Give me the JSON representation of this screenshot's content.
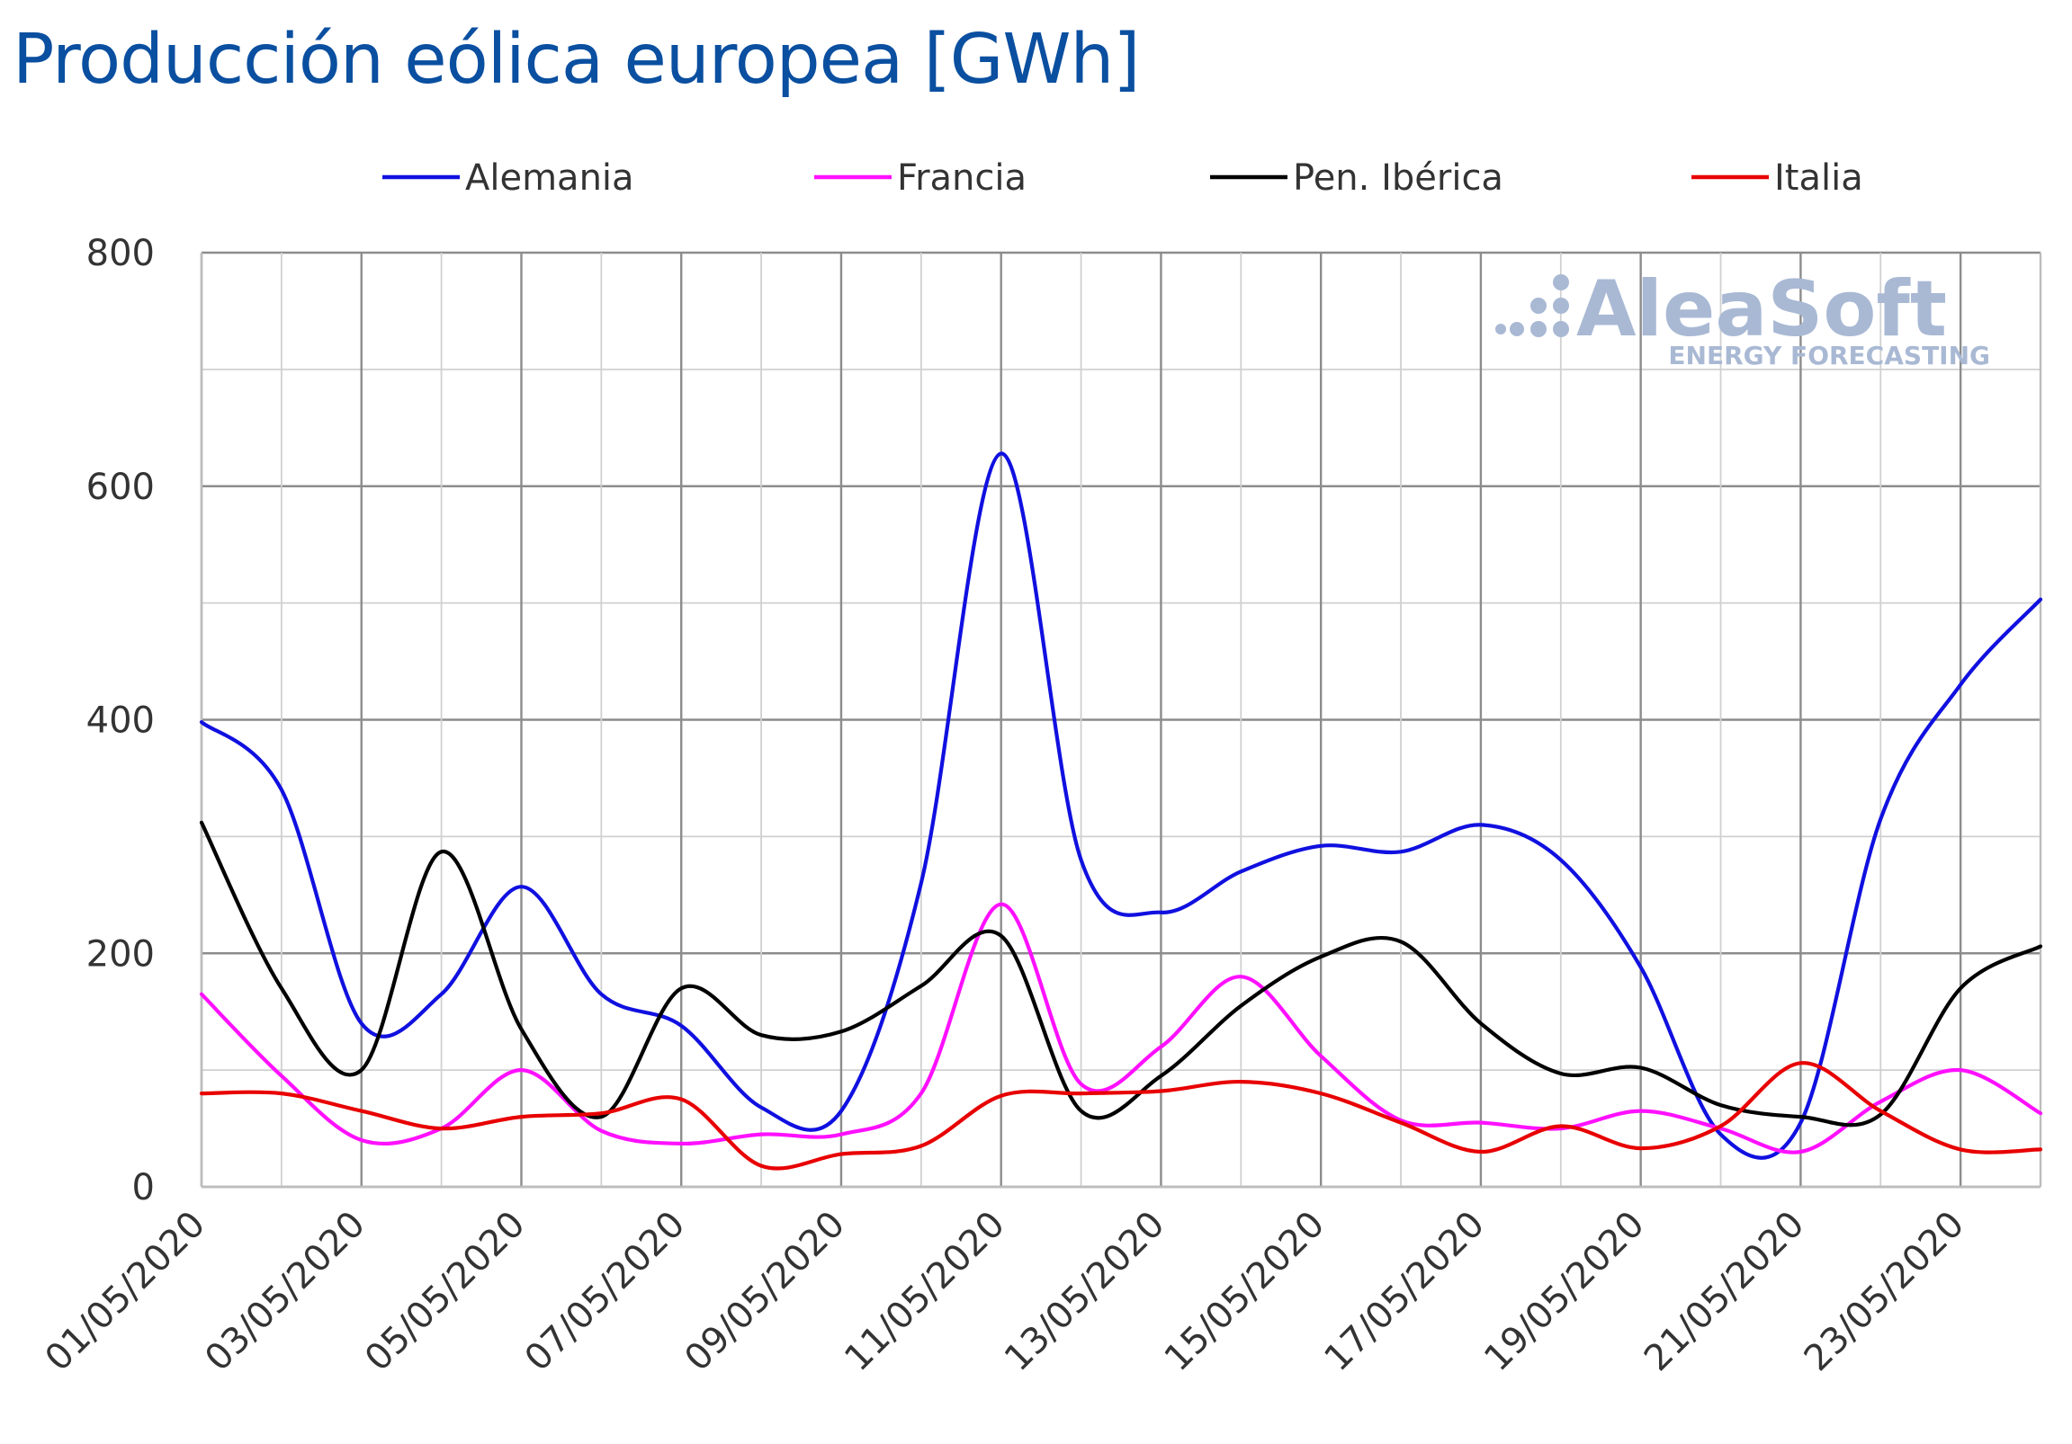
{
  "chart_data": {
    "type": "line",
    "title": "Producción eólica europea [GWh]",
    "xlabel": "",
    "ylabel": "",
    "ylim": [
      0,
      800
    ],
    "yticks": [
      0,
      200,
      400,
      600,
      800
    ],
    "grid": true,
    "legend_position": "top",
    "x": [
      "01/05/2020",
      "02/05/2020",
      "03/05/2020",
      "04/05/2020",
      "05/05/2020",
      "06/05/2020",
      "07/05/2020",
      "08/05/2020",
      "09/05/2020",
      "10/05/2020",
      "11/05/2020",
      "12/05/2020",
      "13/05/2020",
      "14/05/2020",
      "15/05/2020",
      "16/05/2020",
      "17/05/2020",
      "18/05/2020",
      "19/05/2020",
      "20/05/2020",
      "21/05/2020",
      "22/05/2020",
      "23/05/2020",
      "24/05/2020"
    ],
    "x_tick_labels": [
      "01/05/2020",
      "03/05/2020",
      "05/05/2020",
      "07/05/2020",
      "09/05/2020",
      "11/05/2020",
      "13/05/2020",
      "15/05/2020",
      "17/05/2020",
      "19/05/2020",
      "21/05/2020",
      "23/05/2020"
    ],
    "series": [
      {
        "name": "Alemania",
        "color": "#1010e0",
        "values": [
          398,
          340,
          140,
          165,
          257,
          165,
          138,
          68,
          65,
          260,
          628,
          280,
          235,
          270,
          292,
          287,
          310,
          280,
          188,
          45,
          55,
          315,
          430,
          503
        ]
      },
      {
        "name": "Francia",
        "color": "#ff10ff",
        "values": [
          165,
          95,
          40,
          50,
          100,
          48,
          37,
          45,
          45,
          80,
          242,
          88,
          120,
          180,
          112,
          57,
          55,
          50,
          65,
          50,
          30,
          73,
          100,
          63
        ]
      },
      {
        "name": "Pen. Ibérica",
        "color": "#000000",
        "values": [
          312,
          170,
          100,
          287,
          135,
          60,
          170,
          130,
          133,
          172,
          215,
          65,
          95,
          155,
          197,
          210,
          140,
          97,
          102,
          70,
          60,
          62,
          170,
          206
        ]
      },
      {
        "name": "Italia",
        "color": "#e80000",
        "values": [
          80,
          80,
          65,
          50,
          60,
          63,
          75,
          18,
          28,
          35,
          78,
          80,
          82,
          90,
          80,
          55,
          30,
          52,
          33,
          52,
          106,
          65,
          32,
          32
        ]
      }
    ],
    "watermark": {
      "main": "AleaSoft",
      "sub": "ENERGY FORECASTING"
    }
  }
}
